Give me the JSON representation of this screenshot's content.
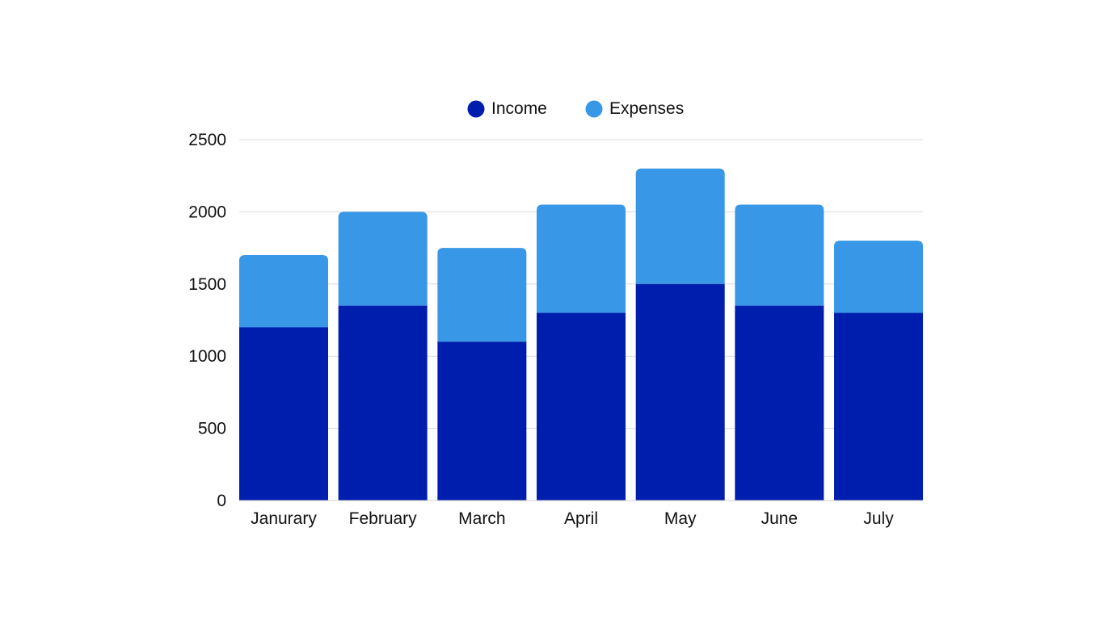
{
  "chart_data": {
    "type": "bar",
    "stacked": true,
    "title": "",
    "xlabel": "",
    "ylabel": "",
    "categories": [
      "Janurary",
      "February",
      "March",
      "April",
      "May",
      "June",
      "July"
    ],
    "series": [
      {
        "name": "Income",
        "color": "#001ead",
        "values": [
          1200,
          1350,
          1100,
          1300,
          1500,
          1350,
          1300
        ]
      },
      {
        "name": "Expenses",
        "color": "#3897e6",
        "values": [
          500,
          650,
          650,
          750,
          800,
          700,
          500
        ]
      }
    ],
    "ylim": [
      0,
      2500
    ],
    "yticks": [
      "0",
      "500",
      "1000",
      "1500",
      "2000",
      "2500"
    ],
    "grid": true,
    "legend_position": "top-center"
  }
}
